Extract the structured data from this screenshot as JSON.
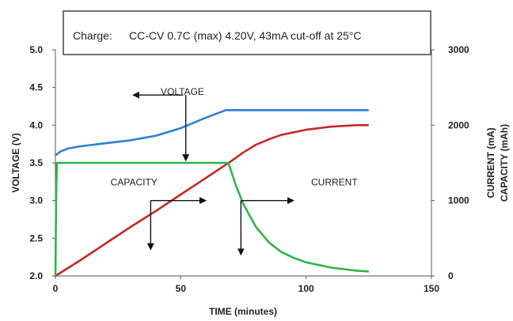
{
  "chart_data": {
    "type": "line",
    "note": {
      "label": "Charge:",
      "text": "CC-CV 0.7C (max) 4.20V, 43mA cut-off at 25°C"
    },
    "xlabel": "TIME (minutes)",
    "ylabel_left": "VOLTAGE (V)",
    "ylabel_right_1": "CURRENT (mA)",
    "ylabel_right_2": "CAPACITY (mAh)",
    "xlim": [
      0,
      150
    ],
    "ylim_left": [
      2.0,
      5.0
    ],
    "ylim_right": [
      0,
      3000
    ],
    "x_ticks": [
      0,
      50,
      100,
      150
    ],
    "y_left_ticks": [
      "2.0",
      "2.5",
      "3.0",
      "3.5",
      "4.0",
      "4.5",
      "5.0"
    ],
    "y_right_ticks": [
      0,
      1000,
      2000,
      3000
    ],
    "grid": false,
    "annotations": [
      {
        "text": "VOLTAGE",
        "x": 42,
        "y_right": 2400
      },
      {
        "text": "CAPACITY",
        "x": 22,
        "y_right": 1200
      },
      {
        "text": "CURRENT",
        "x": 102,
        "y_right": 1200
      }
    ],
    "series": [
      {
        "axis": "left",
        "color": "#2f7fcf",
        "x": [
          0,
          2,
          5,
          10,
          20,
          30,
          40,
          50,
          60,
          68,
          70,
          80,
          90,
          100,
          110,
          120,
          125
        ],
        "y": [
          3.6,
          3.65,
          3.69,
          3.72,
          3.76,
          3.8,
          3.86,
          3.96,
          4.1,
          4.2,
          4.2,
          4.2,
          4.2,
          4.2,
          4.2,
          4.2,
          4.2
        ]
      },
      {
        "axis": "right",
        "color": "#c62828",
        "x": [
          0,
          10,
          20,
          30,
          40,
          50,
          60,
          70,
          75,
          80,
          85,
          90,
          100,
          110,
          120,
          125
        ],
        "y": [
          0,
          210,
          430,
          650,
          860,
          1080,
          1300,
          1520,
          1640,
          1740,
          1810,
          1870,
          1940,
          1980,
          2000,
          2000
        ]
      },
      {
        "axis": "right",
        "color": "#2eb34a",
        "x": [
          0,
          0.3,
          0.6,
          10,
          30,
          50,
          68,
          69,
          70,
          72,
          75,
          80,
          85,
          90,
          95,
          100,
          110,
          120,
          125
        ],
        "y": [
          0,
          1100,
          1500,
          1500,
          1500,
          1500,
          1500,
          1500,
          1400,
          1200,
          950,
          650,
          450,
          320,
          240,
          180,
          110,
          70,
          60
        ]
      }
    ],
    "arrows": [
      {
        "from": [
          51,
          2400
        ],
        "to": [
          31,
          2400
        ]
      },
      {
        "from": [
          52,
          2400
        ],
        "to": [
          52,
          1530
        ]
      },
      {
        "from": [
          38,
          1000
        ],
        "to": [
          60,
          1000
        ]
      },
      {
        "from": [
          38,
          1000
        ],
        "to": [
          38,
          350
        ]
      },
      {
        "from": [
          74,
          1000
        ],
        "to": [
          95,
          1000
        ]
      },
      {
        "from": [
          74,
          1000
        ],
        "to": [
          74,
          280
        ]
      }
    ]
  }
}
